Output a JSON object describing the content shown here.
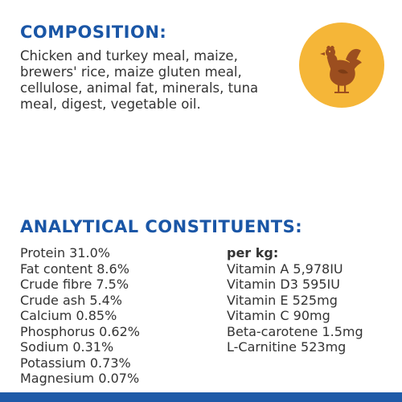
{
  "composition": {
    "title": "COMPOSITION:",
    "lines": [
      "Chicken and turkey meal, maize,",
      "brewers' rice, maize gluten meal,",
      "cellulose, animal fat, minerals, tuna",
      "meal, digest, vegetable oil."
    ]
  },
  "badge": {
    "icon": "chicken-icon",
    "background_color": "#f5b638",
    "icon_color": "#9c4e1f"
  },
  "analytical": {
    "title": "ANALYTICAL CONSTITUENTS:",
    "left": [
      "Protein 31.0%",
      "Fat content 8.6%",
      "Crude fibre 7.5%",
      "Crude ash 5.4%",
      "Calcium 0.85%",
      "Phosphorus 0.62%",
      "Sodium 0.31%",
      "Potassium 0.73%",
      "Magnesium 0.07%"
    ],
    "right_header": "per kg:",
    "right": [
      "Vitamin A 5,978IU",
      "Vitamin D3 595IU",
      "Vitamin E 525mg",
      "Vitamin C 90mg",
      "Beta-carotene 1.5mg",
      "L-Carnitine 523mg"
    ]
  },
  "colors": {
    "heading": "#1a56a6",
    "body_text": "#333333",
    "bottom_bar": "#1e5aa8"
  }
}
